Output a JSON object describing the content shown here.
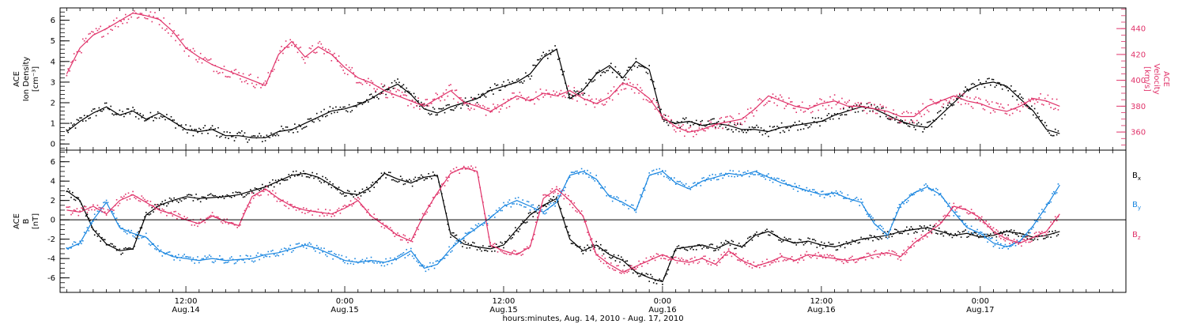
{
  "colors": {
    "black": "#000000",
    "pink": "#e0336a",
    "blue": "#1a86e0",
    "frame": "#000000"
  },
  "x_tick_labels": [
    {
      "top": "12:00",
      "bottom": "Aug.14",
      "hours": 12
    },
    {
      "top": "0:00",
      "bottom": "Aug.15",
      "hours": 24
    },
    {
      "top": "12:00",
      "bottom": "Aug.15",
      "hours": 36
    },
    {
      "top": "0:00",
      "bottom": "Aug.16",
      "hours": 48
    },
    {
      "top": "12:00",
      "bottom": "Aug.16",
      "hours": 60
    },
    {
      "top": "0:00",
      "bottom": "Aug.17",
      "hours": 72
    }
  ],
  "x_axis_title": "hours:minutes, Aug. 14, 2010 - Aug. 17, 2010",
  "chart_data": [
    {
      "type": "scatter",
      "panel": "top",
      "xlim_hours": [
        2.5,
        83.0
      ],
      "left_axis": {
        "label_lines": [
          "ACE",
          "Ion Density",
          "[cm⁻³]"
        ],
        "ylim": [
          -0.3,
          6.6
        ],
        "ticks": [
          "0",
          "1",
          "2",
          "3",
          "4",
          "5",
          "6"
        ]
      },
      "right_axis": {
        "label_lines": [
          "ACE",
          "Velocity",
          "[km/s]"
        ],
        "ylim": [
          346,
          456
        ],
        "ticks": [
          "360",
          "380",
          "400",
          "420",
          "440"
        ]
      },
      "series": [
        {
          "color": "black",
          "axis": "left",
          "x": [
            3,
            4,
            5,
            6,
            7,
            8,
            9,
            10,
            11,
            12,
            13,
            14,
            15,
            16,
            17,
            18,
            19,
            20,
            21,
            22,
            23,
            24,
            25,
            26,
            27,
            28,
            29,
            30,
            31,
            32,
            33,
            34,
            35,
            36,
            37,
            38,
            39,
            40,
            41,
            42,
            43,
            44,
            45,
            46,
            47,
            48,
            49,
            50,
            51,
            52,
            53,
            54,
            55,
            56,
            57,
            58,
            59,
            60,
            61,
            62,
            63,
            64,
            65,
            66,
            67,
            68,
            69,
            70,
            71,
            72,
            73,
            74,
            75,
            76,
            77,
            78
          ],
          "values": [
            0.6,
            1.1,
            1.5,
            1.8,
            1.4,
            1.6,
            1.2,
            1.5,
            1.1,
            0.7,
            0.6,
            0.7,
            0.4,
            0.4,
            0.3,
            0.3,
            0.6,
            0.7,
            1.0,
            1.3,
            1.6,
            1.7,
            1.9,
            2.2,
            2.6,
            2.9,
            2.4,
            1.7,
            1.5,
            1.8,
            2.0,
            2.2,
            2.6,
            2.8,
            3.0,
            3.4,
            4.2,
            4.6,
            2.2,
            2.6,
            3.4,
            3.8,
            3.2,
            4.0,
            3.6,
            1.2,
            1.0,
            1.1,
            0.9,
            1.0,
            0.9,
            0.7,
            0.7,
            0.6,
            0.8,
            0.9,
            1.0,
            1.1,
            1.4,
            1.6,
            1.8,
            1.7,
            1.4,
            1.1,
            0.9,
            0.8,
            1.4,
            2.0,
            2.6,
            2.9,
            3.0,
            2.8,
            2.2,
            1.6,
            0.7,
            0.5
          ]
        },
        {
          "color": "pink",
          "axis": "right",
          "x": [
            3,
            4,
            5,
            6,
            7,
            8,
            9,
            10,
            11,
            12,
            13,
            14,
            15,
            16,
            17,
            18,
            19,
            20,
            21,
            22,
            23,
            24,
            25,
            26,
            27,
            28,
            29,
            30,
            31,
            32,
            33,
            34,
            35,
            36,
            37,
            38,
            39,
            40,
            41,
            42,
            43,
            44,
            45,
            46,
            47,
            48,
            49,
            50,
            51,
            52,
            53,
            54,
            55,
            56,
            57,
            58,
            59,
            60,
            61,
            62,
            63,
            64,
            65,
            66,
            67,
            68,
            69,
            70,
            71,
            72,
            73,
            74,
            75,
            76,
            77,
            78
          ],
          "values": [
            405,
            425,
            435,
            440,
            446,
            452,
            450,
            447,
            438,
            425,
            418,
            412,
            408,
            404,
            400,
            396,
            420,
            430,
            418,
            426,
            420,
            410,
            402,
            398,
            392,
            388,
            384,
            380,
            386,
            392,
            383,
            380,
            376,
            382,
            388,
            384,
            390,
            388,
            392,
            386,
            382,
            387,
            398,
            394,
            386,
            372,
            364,
            360,
            362,
            366,
            368,
            370,
            378,
            388,
            384,
            380,
            378,
            382,
            384,
            380,
            380,
            378,
            376,
            372,
            372,
            380,
            384,
            388,
            384,
            382,
            378,
            376,
            380,
            386,
            384,
            380
          ]
        }
      ]
    },
    {
      "type": "scatter",
      "panel": "bottom",
      "xlim_hours": [
        2.5,
        83.0
      ],
      "left_axis": {
        "label_lines": [
          "ACE",
          "B",
          "[nT]"
        ],
        "ylim": [
          -7.5,
          7.2
        ],
        "ticks": [
          "-6",
          "-4",
          "-2",
          "0",
          "2",
          "4",
          "6"
        ]
      },
      "legend": {
        "placement": "right",
        "entries": [
          {
            "letter": "B",
            "subscript": "x",
            "color": "black"
          },
          {
            "letter": "B",
            "subscript": "y",
            "color": "blue"
          },
          {
            "letter": "B",
            "subscript": "z",
            "color": "pink"
          }
        ]
      },
      "series": [
        {
          "color": "black",
          "x": [
            3,
            4,
            5,
            6,
            7,
            8,
            9,
            10,
            11,
            12,
            13,
            14,
            15,
            16,
            17,
            18,
            19,
            20,
            21,
            22,
            23,
            24,
            25,
            26,
            27,
            28,
            29,
            30,
            31,
            32,
            33,
            34,
            35,
            36,
            37,
            38,
            39,
            40,
            41,
            42,
            43,
            44,
            45,
            46,
            47,
            48,
            49,
            50,
            51,
            52,
            53,
            54,
            55,
            56,
            57,
            58,
            59,
            60,
            61,
            62,
            63,
            64,
            65,
            66,
            67,
            68,
            69,
            70,
            71,
            72,
            73,
            74,
            75,
            76,
            77,
            78
          ],
          "values": [
            3.0,
            2.0,
            -1.0,
            -2.5,
            -3.2,
            -3.0,
            0.5,
            1.5,
            2.0,
            2.4,
            2.2,
            2.3,
            2.4,
            2.6,
            3.0,
            3.4,
            4.0,
            4.6,
            4.8,
            4.4,
            3.6,
            2.8,
            2.6,
            3.4,
            4.8,
            4.2,
            3.8,
            4.4,
            4.6,
            -1.5,
            -2.5,
            -2.8,
            -3.0,
            -2.6,
            -1.0,
            0.5,
            1.5,
            2.2,
            -2.0,
            -3.2,
            -2.6,
            -3.6,
            -4.2,
            -5.4,
            -6.0,
            -6.4,
            -3.0,
            -2.8,
            -2.6,
            -3.0,
            -2.4,
            -2.8,
            -1.6,
            -1.2,
            -2.0,
            -2.4,
            -2.2,
            -2.6,
            -2.8,
            -2.4,
            -2.0,
            -1.8,
            -1.6,
            -1.2,
            -1.0,
            -0.8,
            -1.2,
            -1.6,
            -1.4,
            -1.8,
            -1.6,
            -1.2,
            -1.4,
            -1.8,
            -1.6,
            -1.2
          ]
        },
        {
          "color": "blue",
          "x": [
            3,
            4,
            5,
            6,
            7,
            8,
            9,
            10,
            11,
            12,
            13,
            14,
            15,
            16,
            17,
            18,
            19,
            20,
            21,
            22,
            23,
            24,
            25,
            26,
            27,
            28,
            29,
            30,
            31,
            32,
            33,
            34,
            35,
            36,
            37,
            38,
            39,
            40,
            41,
            42,
            43,
            44,
            45,
            46,
            47,
            48,
            49,
            50,
            51,
            52,
            53,
            54,
            55,
            56,
            57,
            58,
            59,
            60,
            61,
            62,
            63,
            64,
            65,
            66,
            67,
            68,
            69,
            70,
            71,
            72,
            73,
            74,
            75,
            76,
            77,
            78
          ],
          "values": [
            -3.0,
            -2.4,
            0.0,
            1.8,
            -0.8,
            -1.4,
            -1.8,
            -3.2,
            -3.8,
            -4.0,
            -4.2,
            -4.0,
            -4.2,
            -4.1,
            -4.0,
            -3.6,
            -3.4,
            -3.0,
            -2.6,
            -3.0,
            -3.6,
            -4.2,
            -4.4,
            -4.2,
            -4.4,
            -4.0,
            -3.2,
            -5.0,
            -4.6,
            -3.0,
            -1.8,
            -0.8,
            0.2,
            1.4,
            2.0,
            1.4,
            0.8,
            1.8,
            4.6,
            5.0,
            4.2,
            2.4,
            1.8,
            1.0,
            4.6,
            5.0,
            3.8,
            3.2,
            4.0,
            4.4,
            4.8,
            4.6,
            5.0,
            4.4,
            3.8,
            3.4,
            3.0,
            2.6,
            2.8,
            2.2,
            1.8,
            -0.4,
            -1.6,
            1.6,
            2.8,
            3.4,
            2.6,
            0.8,
            -0.8,
            -1.4,
            -2.4,
            -2.8,
            -2.2,
            -0.6,
            1.4,
            3.6
          ]
        },
        {
          "color": "pink",
          "x": [
            3,
            4,
            5,
            6,
            7,
            8,
            9,
            10,
            11,
            12,
            13,
            14,
            15,
            16,
            17,
            18,
            19,
            20,
            21,
            22,
            23,
            24,
            25,
            26,
            27,
            28,
            29,
            30,
            31,
            32,
            33,
            34,
            35,
            36,
            37,
            38,
            39,
            40,
            41,
            42,
            43,
            44,
            45,
            46,
            47,
            48,
            49,
            50,
            51,
            52,
            53,
            54,
            55,
            56,
            57,
            58,
            59,
            60,
            61,
            62,
            63,
            64,
            65,
            66,
            67,
            68,
            69,
            70,
            71,
            72,
            73,
            74,
            75,
            76,
            77,
            78
          ],
          "values": [
            1.0,
            0.8,
            1.4,
            0.6,
            2.0,
            2.6,
            1.8,
            1.0,
            0.6,
            0.0,
            -0.4,
            0.4,
            -0.2,
            -0.6,
            2.4,
            3.2,
            2.2,
            1.4,
            1.0,
            0.8,
            0.6,
            1.2,
            2.0,
            0.4,
            -0.6,
            -1.6,
            -2.2,
            0.6,
            2.8,
            4.8,
            5.4,
            5.0,
            -2.6,
            -3.2,
            -3.6,
            -2.8,
            2.2,
            3.2,
            2.0,
            0.4,
            -3.6,
            -4.6,
            -5.4,
            -4.8,
            -4.2,
            -3.6,
            -4.2,
            -4.4,
            -4.0,
            -4.6,
            -3.2,
            -4.2,
            -4.8,
            -4.4,
            -3.8,
            -4.2,
            -3.6,
            -3.8,
            -4.0,
            -4.2,
            -4.0,
            -3.6,
            -3.4,
            -3.8,
            -2.4,
            -1.4,
            -0.4,
            1.4,
            1.0,
            0.2,
            -1.2,
            -2.0,
            -2.4,
            -1.8,
            -1.2,
            0.6
          ]
        }
      ]
    }
  ]
}
